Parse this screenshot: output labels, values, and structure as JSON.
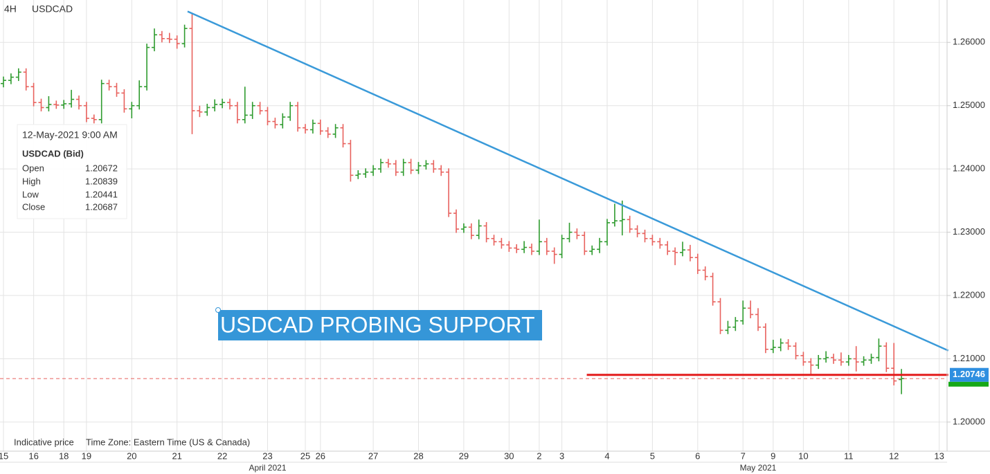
{
  "chart_data": {
    "type": "ohlc",
    "timeframe": "4H",
    "symbol": "USDCAD",
    "footer": [
      "Indicative price",
      "Time Zone: Eastern Time (US & Canada)"
    ],
    "annotation": "USDCAD PROBING SUPPORT",
    "up_color": "#2e9b2e",
    "down_color": "#e8615d",
    "ylim": [
      1.1954,
      1.2667
    ],
    "yticks": [
      {
        "value": 1.2,
        "label": "1.20000"
      },
      {
        "value": 1.21,
        "label": "1.21000"
      },
      {
        "value": 1.22,
        "label": "1.22000"
      },
      {
        "value": 1.23,
        "label": "1.23000"
      },
      {
        "value": 1.24,
        "label": "1.24000"
      },
      {
        "value": 1.25,
        "label": "1.25000"
      },
      {
        "value": 1.26,
        "label": "1.26000"
      }
    ],
    "grid": true,
    "trendline": {
      "x": [
        24.4,
        125.2
      ],
      "y": [
        1.2649,
        1.2113
      ],
      "color": "#3a9ad9"
    },
    "support": {
      "x": [
        77.3,
        125.2
      ],
      "y": 1.20746,
      "color": "#e31b1b"
    },
    "tooltip": {
      "date": "12-May-2021 9:00 AM",
      "title": "USDCAD (Bid)",
      "fields": [
        "Open",
        "High",
        "Low",
        "Close"
      ]
    },
    "categories": [
      "15",
      null,
      null,
      null,
      "16",
      null,
      null,
      null,
      "18",
      null,
      null,
      "19",
      null,
      null,
      null,
      null,
      null,
      "20",
      null,
      null,
      null,
      null,
      null,
      "21",
      null,
      null,
      null,
      null,
      null,
      "22",
      null,
      null,
      null,
      null,
      null,
      "23",
      null,
      null,
      null,
      null,
      "25",
      null,
      "26",
      null,
      null,
      null,
      null,
      null,
      null,
      "27",
      null,
      null,
      null,
      null,
      null,
      "28",
      null,
      null,
      null,
      null,
      null,
      "29",
      null,
      null,
      null,
      null,
      null,
      "30",
      null,
      null,
      null,
      "2",
      null,
      null,
      "3",
      null,
      null,
      null,
      null,
      null,
      "4",
      null,
      null,
      null,
      null,
      null,
      "5",
      null,
      null,
      null,
      null,
      null,
      "6",
      null,
      null,
      null,
      null,
      null,
      "7",
      null,
      null,
      null,
      "9",
      null,
      null,
      null,
      "10",
      null,
      null,
      null,
      null,
      null,
      "11",
      null,
      null,
      null,
      null,
      null,
      "12",
      null,
      null,
      null,
      null,
      null,
      "13"
    ],
    "month_categories": [
      null,
      null,
      null,
      null,
      null,
      null,
      null,
      null,
      null,
      null,
      null,
      null,
      null,
      null,
      null,
      null,
      null,
      null,
      null,
      null,
      null,
      null,
      null,
      null,
      null,
      null,
      null,
      null,
      null,
      null,
      null,
      null,
      null,
      null,
      null,
      "April 2021",
      null,
      null,
      null,
      null,
      null,
      null,
      null,
      null,
      null,
      null,
      null,
      null,
      null,
      null,
      null,
      null,
      null,
      null,
      null,
      null,
      null,
      null,
      null,
      null,
      null,
      null,
      null,
      null,
      null,
      null,
      null,
      null,
      null,
      null,
      null,
      null,
      null,
      null,
      null,
      null,
      null,
      null,
      null,
      null,
      null,
      null,
      null,
      null,
      null,
      null,
      null,
      null,
      null,
      null,
      null,
      null,
      null,
      null,
      null,
      null,
      null,
      null,
      null,
      null,
      "May 2021",
      null,
      null,
      null,
      null,
      null,
      null,
      null,
      null,
      null,
      null,
      null,
      null,
      null,
      null,
      null,
      null,
      null,
      null,
      null,
      null,
      null,
      null,
      null,
      null
    ],
    "ohlc": [
      [
        1.2535,
        1.2546,
        1.2529,
        1.254
      ],
      [
        1.254,
        1.2551,
        1.2534,
        1.2545
      ],
      [
        1.2545,
        1.2559,
        1.2539,
        1.2553
      ],
      [
        1.2553,
        1.2559,
        1.2524,
        1.253
      ],
      [
        1.253,
        1.2536,
        1.2499,
        1.2505
      ],
      [
        1.2505,
        1.2511,
        1.2491,
        1.2497
      ],
      [
        1.2497,
        1.2515,
        1.2491,
        1.2502
      ],
      [
        1.2502,
        1.2508,
        1.2495,
        1.2501
      ],
      [
        1.2501,
        1.2509,
        1.2495,
        1.2503
      ],
      [
        1.2503,
        1.2525,
        1.2497,
        1.251
      ],
      [
        1.251,
        1.2516,
        1.2494,
        1.25
      ],
      [
        1.25,
        1.2506,
        1.2474,
        1.248
      ],
      [
        1.248,
        1.2486,
        1.2472,
        1.2478
      ],
      [
        1.2478,
        1.2541,
        1.2472,
        1.2535
      ],
      [
        1.2535,
        1.2541,
        1.2524,
        1.253
      ],
      [
        1.253,
        1.2536,
        1.2514,
        1.252
      ],
      [
        1.252,
        1.2526,
        1.2489,
        1.2495
      ],
      [
        1.2495,
        1.2506,
        1.248,
        1.25
      ],
      [
        1.25,
        1.254,
        1.2494,
        1.253
      ],
      [
        1.253,
        1.2598,
        1.2524,
        1.2592
      ],
      [
        1.2592,
        1.2622,
        1.2586,
        1.2612
      ],
      [
        1.2612,
        1.2618,
        1.26,
        1.2606
      ],
      [
        1.2606,
        1.2615,
        1.2599,
        1.2605
      ],
      [
        1.2605,
        1.2611,
        1.259,
        1.2598
      ],
      [
        1.2598,
        1.2628,
        1.2592,
        1.2622
      ],
      [
        1.2622,
        1.2645,
        1.2455,
        1.2492
      ],
      [
        1.2492,
        1.25,
        1.2482,
        1.249
      ],
      [
        1.249,
        1.2503,
        1.2484,
        1.2497
      ],
      [
        1.2497,
        1.251,
        1.2491,
        1.2502
      ],
      [
        1.2502,
        1.2511,
        1.2496,
        1.2505
      ],
      [
        1.2505,
        1.2511,
        1.2494,
        1.25
      ],
      [
        1.25,
        1.2506,
        1.2472,
        1.2478
      ],
      [
        1.2478,
        1.253,
        1.2472,
        1.2485
      ],
      [
        1.2485,
        1.2506,
        1.2479,
        1.25
      ],
      [
        1.25,
        1.2506,
        1.2486,
        1.2492
      ],
      [
        1.2492,
        1.2498,
        1.2469,
        1.2475
      ],
      [
        1.2475,
        1.2481,
        1.2464,
        1.247
      ],
      [
        1.247,
        1.2488,
        1.2464,
        1.2482
      ],
      [
        1.2482,
        1.2506,
        1.2476,
        1.25
      ],
      [
        1.25,
        1.2506,
        1.2459,
        1.2465
      ],
      [
        1.2465,
        1.2471,
        1.2456,
        1.2462
      ],
      [
        1.2462,
        1.2478,
        1.2456,
        1.2472
      ],
      [
        1.2472,
        1.2478,
        1.2454,
        1.246
      ],
      [
        1.246,
        1.2466,
        1.2449,
        1.2455
      ],
      [
        1.2455,
        1.2471,
        1.2449,
        1.2465
      ],
      [
        1.2465,
        1.2471,
        1.2434,
        1.244
      ],
      [
        1.244,
        1.2446,
        1.238,
        1.239
      ],
      [
        1.239,
        1.2398,
        1.2384,
        1.2392
      ],
      [
        1.2392,
        1.2401,
        1.2386,
        1.2395
      ],
      [
        1.2395,
        1.2406,
        1.2389,
        1.24
      ],
      [
        1.24,
        1.2416,
        1.2394,
        1.241
      ],
      [
        1.241,
        1.2416,
        1.2402,
        1.2408
      ],
      [
        1.2408,
        1.2414,
        1.2389,
        1.2395
      ],
      [
        1.2395,
        1.2416,
        1.2389,
        1.241
      ],
      [
        1.241,
        1.2416,
        1.2392,
        1.2398
      ],
      [
        1.2398,
        1.2411,
        1.2392,
        1.2405
      ],
      [
        1.2405,
        1.2414,
        1.2399,
        1.2408
      ],
      [
        1.2408,
        1.2414,
        1.2394,
        1.24
      ],
      [
        1.24,
        1.2406,
        1.2389,
        1.2395
      ],
      [
        1.2395,
        1.2401,
        1.2324,
        1.233
      ],
      [
        1.233,
        1.2336,
        1.2299,
        1.2305
      ],
      [
        1.2305,
        1.2314,
        1.2299,
        1.2308
      ],
      [
        1.2308,
        1.2314,
        1.2289,
        1.2295
      ],
      [
        1.2295,
        1.232,
        1.2289,
        1.231
      ],
      [
        1.231,
        1.2316,
        1.2284,
        1.229
      ],
      [
        1.229,
        1.2296,
        1.2279,
        1.2285
      ],
      [
        1.2285,
        1.2291,
        1.2274,
        1.228
      ],
      [
        1.228,
        1.2286,
        1.2269,
        1.2275
      ],
      [
        1.2275,
        1.2281,
        1.2267,
        1.2273
      ],
      [
        1.2273,
        1.2286,
        1.2267,
        1.2276
      ],
      [
        1.2276,
        1.2282,
        1.2264,
        1.227
      ],
      [
        1.227,
        1.232,
        1.2264,
        1.2285
      ],
      [
        1.2285,
        1.2291,
        1.2264,
        1.227
      ],
      [
        1.227,
        1.2276,
        1.225,
        1.2265
      ],
      [
        1.2265,
        1.2296,
        1.2259,
        1.229
      ],
      [
        1.229,
        1.2315,
        1.2284,
        1.23
      ],
      [
        1.23,
        1.2306,
        1.2289,
        1.2295
      ],
      [
        1.2295,
        1.2301,
        1.2264,
        1.227
      ],
      [
        1.227,
        1.2279,
        1.2264,
        1.2273
      ],
      [
        1.2273,
        1.2291,
        1.2267,
        1.2285
      ],
      [
        1.2285,
        1.2321,
        1.2279,
        1.2315
      ],
      [
        1.2315,
        1.2345,
        1.2309,
        1.2318
      ],
      [
        1.2318,
        1.235,
        1.2295,
        1.232
      ],
      [
        1.232,
        1.2326,
        1.2299,
        1.2305
      ],
      [
        1.2305,
        1.2311,
        1.2292,
        1.2298
      ],
      [
        1.2298,
        1.2304,
        1.2284,
        1.229
      ],
      [
        1.229,
        1.2296,
        1.2279,
        1.2285
      ],
      [
        1.2285,
        1.2291,
        1.2274,
        1.228
      ],
      [
        1.228,
        1.2286,
        1.2264,
        1.227
      ],
      [
        1.227,
        1.2276,
        1.2248,
        1.2268
      ],
      [
        1.2268,
        1.2285,
        1.2262,
        1.2272
      ],
      [
        1.2272,
        1.228,
        1.2254,
        1.226
      ],
      [
        1.226,
        1.2266,
        1.2234,
        1.224
      ],
      [
        1.224,
        1.2246,
        1.2224,
        1.223
      ],
      [
        1.223,
        1.2236,
        1.2184,
        1.219
      ],
      [
        1.219,
        1.2196,
        1.2139,
        1.2145
      ],
      [
        1.2145,
        1.216,
        1.2139,
        1.215
      ],
      [
        1.215,
        1.2166,
        1.2144,
        1.216
      ],
      [
        1.216,
        1.2192,
        1.2154,
        1.218
      ],
      [
        1.218,
        1.2192,
        1.2164,
        1.217
      ],
      [
        1.217,
        1.218,
        1.2144,
        1.215
      ],
      [
        1.215,
        1.2156,
        1.2109,
        1.2115
      ],
      [
        1.2115,
        1.213,
        1.2109,
        1.2118
      ],
      [
        1.2118,
        1.2132,
        1.2112,
        1.2125
      ],
      [
        1.2125,
        1.2131,
        1.2114,
        1.212
      ],
      [
        1.212,
        1.2126,
        1.2099,
        1.2105
      ],
      [
        1.2105,
        1.2111,
        1.2089,
        1.2095
      ],
      [
        1.2095,
        1.2101,
        1.2076,
        1.209
      ],
      [
        1.209,
        1.2106,
        1.2084,
        1.21
      ],
      [
        1.21,
        1.2112,
        1.2094,
        1.2102
      ],
      [
        1.2102,
        1.2108,
        1.2092,
        1.2098
      ],
      [
        1.2098,
        1.211,
        1.2089,
        1.2095
      ],
      [
        1.2095,
        1.2106,
        1.2089,
        1.21
      ],
      [
        1.21,
        1.212,
        1.208,
        1.2095
      ],
      [
        1.2095,
        1.2104,
        1.2089,
        1.2098
      ],
      [
        1.2098,
        1.2108,
        1.2092,
        1.2102
      ],
      [
        1.2102,
        1.2132,
        1.2096,
        1.212
      ],
      [
        1.212,
        1.2126,
        1.2079,
        1.2085
      ],
      [
        1.2085,
        1.2125,
        1.2058,
        1.2065
      ],
      [
        1.20672,
        1.20839,
        1.20441,
        1.20687
      ],
      null,
      null,
      null,
      null,
      null
    ]
  }
}
